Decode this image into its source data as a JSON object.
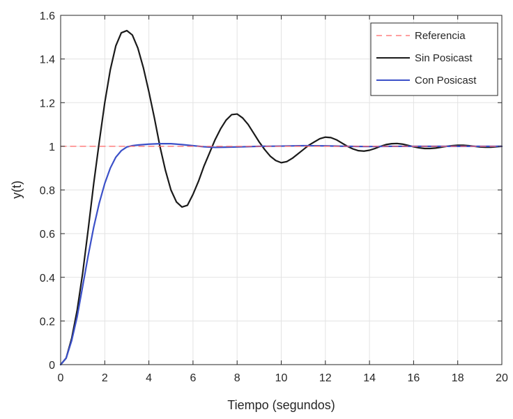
{
  "chart_data": {
    "type": "line",
    "title": "",
    "xlabel": "Tiempo (segundos)",
    "ylabel": "y(t)",
    "xlim": [
      0,
      20
    ],
    "ylim": [
      0,
      1.6
    ],
    "xticks": [
      0,
      2,
      4,
      6,
      8,
      10,
      12,
      14,
      16,
      18,
      20
    ],
    "xtick_labels": [
      "0",
      "2",
      "4",
      "6",
      "8",
      "10",
      "12",
      "14",
      "16",
      "18",
      "20"
    ],
    "yticks": [
      0,
      0.2,
      0.4,
      0.6,
      0.8,
      1,
      1.2,
      1.4,
      1.6
    ],
    "ytick_labels": [
      "0",
      "0.2",
      "0.4",
      "0.6",
      "0.8",
      "1",
      "1.2",
      "1.4",
      "1.6"
    ],
    "grid": true,
    "legend_position": "top-right",
    "series": [
      {
        "name": "Referencia",
        "color": "#ff6666",
        "style": "dashed",
        "x": [
          0,
          20
        ],
        "y": [
          1,
          1
        ]
      },
      {
        "name": "Sin Posicast",
        "color": "#1a1a1a",
        "style": "solid",
        "x": [
          0,
          0.25,
          0.5,
          0.75,
          1,
          1.25,
          1.5,
          1.75,
          2,
          2.25,
          2.5,
          2.75,
          3,
          3.25,
          3.5,
          3.75,
          4,
          4.25,
          4.5,
          4.75,
          5,
          5.25,
          5.5,
          5.75,
          6,
          6.25,
          6.5,
          6.75,
          7,
          7.25,
          7.5,
          7.75,
          8,
          8.25,
          8.5,
          8.75,
          9,
          9.25,
          9.5,
          9.75,
          10,
          10.25,
          10.5,
          10.75,
          11,
          11.25,
          11.5,
          11.75,
          12,
          12.25,
          12.5,
          12.75,
          13,
          13.25,
          13.5,
          13.75,
          14,
          14.25,
          14.5,
          14.75,
          15,
          15.25,
          15.5,
          15.75,
          16,
          16.25,
          16.5,
          16.75,
          17,
          17.25,
          17.5,
          17.75,
          18,
          18.25,
          18.5,
          18.75,
          19,
          19.25,
          19.5,
          19.75,
          20
        ],
        "y": [
          0,
          0.03,
          0.12,
          0.25,
          0.42,
          0.62,
          0.83,
          1.02,
          1.2,
          1.35,
          1.46,
          1.52,
          1.53,
          1.51,
          1.45,
          1.36,
          1.25,
          1.13,
          1.0,
          0.89,
          0.8,
          0.745,
          0.722,
          0.73,
          0.78,
          0.84,
          0.91,
          0.97,
          1.03,
          1.08,
          1.12,
          1.145,
          1.148,
          1.13,
          1.1,
          1.06,
          1.02,
          0.985,
          0.955,
          0.935,
          0.925,
          0.93,
          0.945,
          0.965,
          0.985,
          1.005,
          1.02,
          1.035,
          1.042,
          1.04,
          1.03,
          1.015,
          1.0,
          0.988,
          0.98,
          0.978,
          0.982,
          0.99,
          1.0,
          1.008,
          1.012,
          1.013,
          1.01,
          1.004,
          0.998,
          0.993,
          0.99,
          0.99,
          0.992,
          0.996,
          1.0,
          1.003,
          1.005,
          1.005,
          1.003,
          1.0,
          0.997,
          0.996,
          0.996,
          0.998,
          1.0
        ]
      },
      {
        "name": "Con Posicast",
        "color": "#3b50c8",
        "style": "solid",
        "x": [
          0,
          0.25,
          0.5,
          0.75,
          1,
          1.25,
          1.5,
          1.75,
          2,
          2.25,
          2.5,
          2.75,
          3,
          3.25,
          3.5,
          4,
          4.5,
          5,
          5.5,
          6,
          6.5,
          7,
          7.5,
          8,
          9,
          10,
          11,
          12,
          13,
          14,
          15,
          16,
          17,
          18,
          19,
          20
        ],
        "y": [
          0,
          0.03,
          0.11,
          0.22,
          0.36,
          0.5,
          0.63,
          0.74,
          0.83,
          0.9,
          0.95,
          0.98,
          0.997,
          1.003,
          1.006,
          1.01,
          1.012,
          1.012,
          1.008,
          1.003,
          0.998,
          0.995,
          0.996,
          0.997,
          1.0,
          1.001,
          1.003,
          1.002,
          1.0,
          0.999,
          1.0,
          1.0,
          1.0,
          1.0,
          1.0,
          1.0
        ]
      }
    ]
  }
}
